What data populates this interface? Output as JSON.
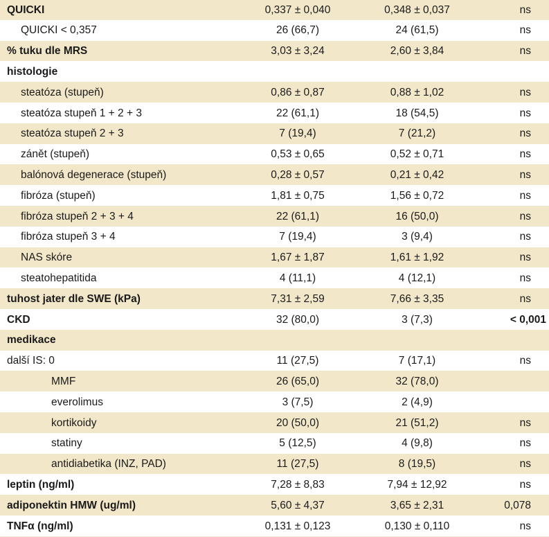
{
  "rows": [
    {
      "label": "QUICKI",
      "g1": "0,337 ± 0,040",
      "g2": "0,348 ± 0,037",
      "p": "ns",
      "bold": true,
      "level": 0
    },
    {
      "label": "QUICKI < 0,357",
      "g1": "26 (66,7)",
      "g2": "24 (61,5)",
      "p": "ns",
      "bold": false,
      "level": 1
    },
    {
      "label": "% tuku dle MRS",
      "g1": "3,03 ± 3,24",
      "g2": "2,60 ± 3,84",
      "p": "ns",
      "bold": true,
      "level": 0
    },
    {
      "label": "histologie",
      "g1": "",
      "g2": "",
      "p": "",
      "bold": true,
      "level": 0
    },
    {
      "label": "steatóza (stupeň)",
      "g1": "0,86 ± 0,87",
      "g2": "0,88 ± 1,02",
      "p": "ns",
      "bold": false,
      "level": 1
    },
    {
      "label": "steatóza stupeň 1 + 2 + 3",
      "g1": "22 (61,1)",
      "g2": "18 (54,5)",
      "p": "ns",
      "bold": false,
      "level": 1
    },
    {
      "label": "steatóza stupeň 2 + 3",
      "g1": "7 (19,4)",
      "g2": "7 (21,2)",
      "p": "ns",
      "bold": false,
      "level": 1
    },
    {
      "label": "zánět (stupeň)",
      "g1": "0,53 ± 0,65",
      "g2": "0,52 ± 0,71",
      "p": "ns",
      "bold": false,
      "level": 1
    },
    {
      "label": "balónová degenerace (stupeň)",
      "g1": "0,28 ± 0,57",
      "g2": "0,21 ± 0,42",
      "p": "ns",
      "bold": false,
      "level": 1
    },
    {
      "label": "fibróza (stupeň)",
      "g1": "1,81 ± 0,75",
      "g2": "1,56 ± 0,72",
      "p": "ns",
      "bold": false,
      "level": 1
    },
    {
      "label": "fibróza stupeň 2 + 3 + 4",
      "g1": "22 (61,1)",
      "g2": "16 (50,0)",
      "p": "ns",
      "bold": false,
      "level": 1
    },
    {
      "label": "fibróza stupeň 3 + 4",
      "g1": "7 (19,4)",
      "g2": "3 (9,4)",
      "p": "ns",
      "bold": false,
      "level": 1
    },
    {
      "label": "NAS skóre",
      "g1": "1,67 ± 1,87",
      "g2": "1,61 ± 1,92",
      "p": "ns",
      "bold": false,
      "level": 1
    },
    {
      "label": "steatohepatitida",
      "g1": "4 (11,1)",
      "g2": "4 (12,1)",
      "p": "ns",
      "bold": false,
      "level": 1
    },
    {
      "label": "tuhost jater dle SWE (kPa)",
      "g1": "7,31 ± 2,59",
      "g2": "7,66 ± 3,35",
      "p": "ns",
      "bold": true,
      "level": 0
    },
    {
      "label": "CKD",
      "g1": "32 (80,0)",
      "g2": "3 (7,3)",
      "p": "< 0,001",
      "bold": true,
      "level": 0,
      "pbold": true
    },
    {
      "label": "medikace",
      "g1": "",
      "g2": "",
      "p": "",
      "bold": true,
      "level": 0
    },
    {
      "label": "další IS: 0",
      "g1": "11 (27,5)",
      "g2": "7 (17,1)",
      "p": "ns",
      "bold": false,
      "level": 0
    },
    {
      "label": "MMF",
      "g1": "26 (65,0)",
      "g2": "32 (78,0)",
      "p": "",
      "bold": false,
      "level": 2
    },
    {
      "label": "everolimus",
      "g1": "3 (7,5)",
      "g2": "2 (4,9)",
      "p": "",
      "bold": false,
      "level": 2
    },
    {
      "label": "kortikoidy",
      "g1": "20 (50,0)",
      "g2": "21 (51,2)",
      "p": "ns",
      "bold": false,
      "level": 2
    },
    {
      "label": "statiny",
      "g1": "5 (12,5)",
      "g2": "4 (9,8)",
      "p": "ns",
      "bold": false,
      "level": 2
    },
    {
      "label": "antidiabetika (INZ, PAD)",
      "g1": "11 (27,5)",
      "g2": "8 (19,5)",
      "p": "ns",
      "bold": false,
      "level": 2
    },
    {
      "label": "leptin (ng/ml)",
      "g1": "7,28 ± 8,83",
      "g2": "7,94 ± 12,92",
      "p": "ns",
      "bold": true,
      "level": 0
    },
    {
      "label": "adiponektin HMW (ug/ml)",
      "g1": "5,60 ± 4,37",
      "g2": "3,65 ± 2,31",
      "p": "0,078",
      "bold": true,
      "level": 0
    },
    {
      "label": "TNFα (ng/ml)",
      "g1": "0,131 ± 0,123",
      "g2": "0,130 ± 0,110",
      "p": "ns",
      "bold": true,
      "level": 0
    }
  ]
}
